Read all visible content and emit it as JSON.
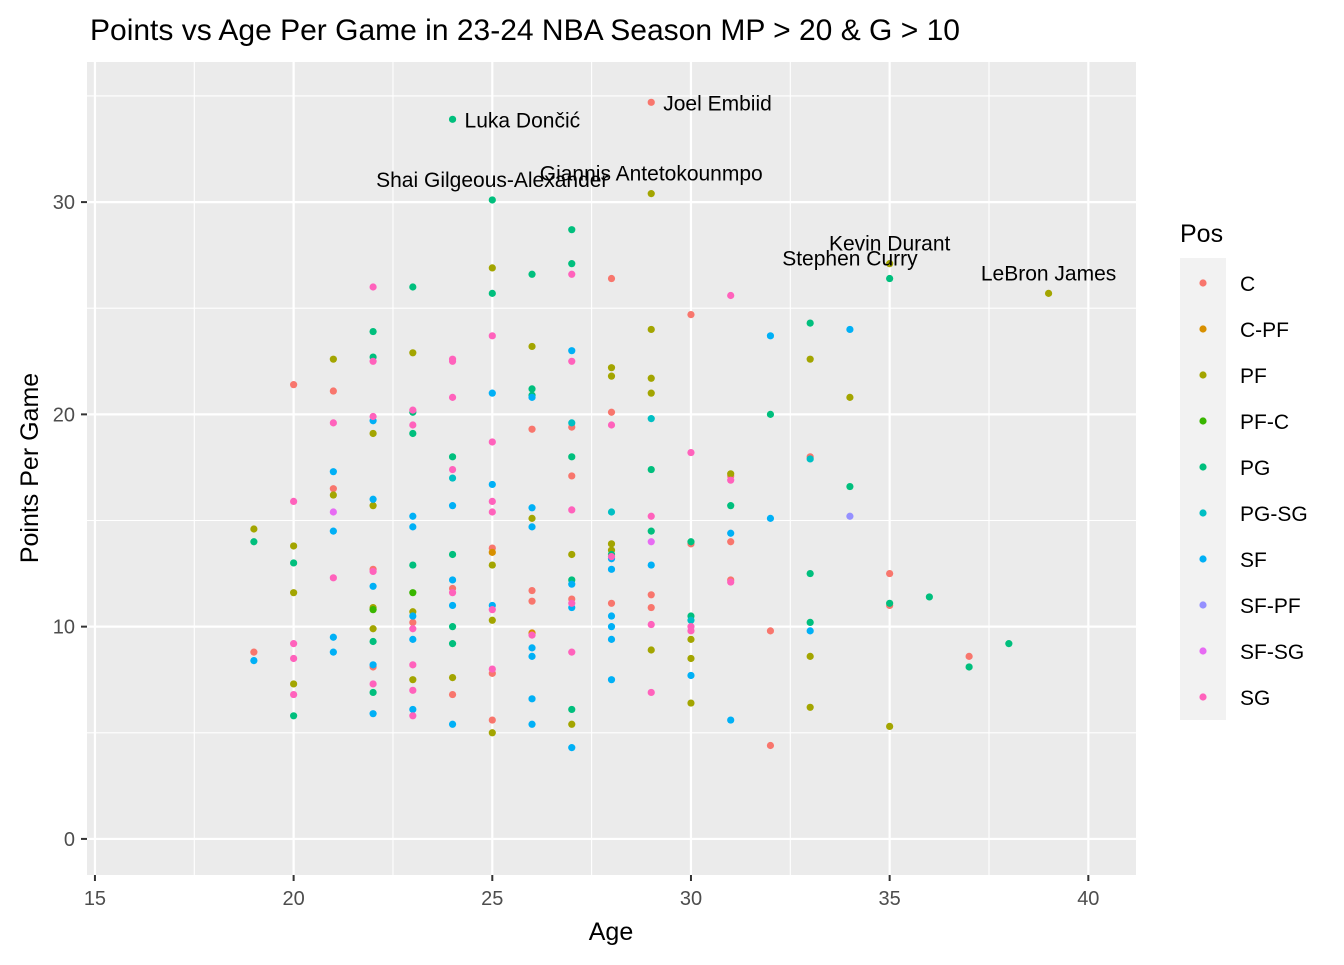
{
  "chart_data": {
    "type": "scatter",
    "title": "Points vs Age Per Game in 23-24 NBA Season MP > 20 & G > 10",
    "xlabel": "Age",
    "ylabel": "Points Per Game",
    "xlim": [
      14.8,
      41.2
    ],
    "ylim": [
      -1.7,
      36.6
    ],
    "x_ticks": [
      15,
      20,
      25,
      30,
      35,
      40
    ],
    "y_ticks": [
      0,
      10,
      20,
      30
    ],
    "grid": true,
    "legend": {
      "title": "Pos",
      "placement": "right",
      "entries": [
        {
          "name": "C",
          "color": "#F8766D"
        },
        {
          "name": "C-PF",
          "color": "#D89000"
        },
        {
          "name": "PF",
          "color": "#A3A500"
        },
        {
          "name": "PF-C",
          "color": "#39B600"
        },
        {
          "name": "PG",
          "color": "#00BF7D"
        },
        {
          "name": "PG-SG",
          "color": "#00BFC4"
        },
        {
          "name": "SF",
          "color": "#00B0F6"
        },
        {
          "name": "SF-PF",
          "color": "#9590FF"
        },
        {
          "name": "SF-SG",
          "color": "#E76BF3"
        },
        {
          "name": "SG",
          "color": "#FF62BC"
        }
      ]
    },
    "annotations": [
      {
        "text": "Joel Embiid",
        "x": 29,
        "y": 34.7,
        "anchor": "start"
      },
      {
        "text": "Luka Dončić",
        "x": 24,
        "y": 33.9,
        "anchor": "start"
      },
      {
        "text": "Giannis Antetokounmpo",
        "x": 29,
        "y": 30.4,
        "anchor": "middle"
      },
      {
        "text": "Shai Gilgeous-Alexander",
        "x": 25,
        "y": 30.1,
        "anchor": "middle"
      },
      {
        "text": "Kevin Durant",
        "x": 35,
        "y": 27.1,
        "anchor": "middle"
      },
      {
        "text": "Stephen Curry",
        "x": 34,
        "y": 26.4,
        "anchor": "middle"
      },
      {
        "text": "LeBron James",
        "x": 39,
        "y": 25.7,
        "anchor": "middle"
      }
    ],
    "series": [
      {
        "name": "C",
        "points": [
          [
            29,
            34.7
          ],
          [
            19,
            8.8
          ],
          [
            20,
            21.4
          ],
          [
            21,
            21.1
          ],
          [
            21,
            16.5
          ],
          [
            22,
            12.7
          ],
          [
            22,
            8.1
          ],
          [
            23,
            10.2
          ],
          [
            24,
            11.8
          ],
          [
            24,
            6.8
          ],
          [
            25,
            5.6
          ],
          [
            25,
            7.8
          ],
          [
            25,
            13.7
          ],
          [
            26,
            11.7
          ],
          [
            26,
            11.2
          ],
          [
            26,
            9.7
          ],
          [
            26,
            19.3
          ],
          [
            27,
            17.1
          ],
          [
            27,
            19.4
          ],
          [
            27,
            11.3
          ],
          [
            28,
            26.4
          ],
          [
            28,
            20.1
          ],
          [
            28,
            11.1
          ],
          [
            29,
            11.5
          ],
          [
            29,
            10.9
          ],
          [
            30,
            24.7
          ],
          [
            30,
            13.9
          ],
          [
            31,
            14.0
          ],
          [
            31,
            12.2
          ],
          [
            31,
            17.1
          ],
          [
            32,
            9.8
          ],
          [
            32,
            4.4
          ],
          [
            33,
            18.0
          ],
          [
            35,
            12.5
          ],
          [
            35,
            11.0
          ],
          [
            37,
            8.6
          ]
        ]
      },
      {
        "name": "C-PF",
        "points": [
          [
            25,
            13.5
          ],
          [
            26,
            9.7
          ]
        ]
      },
      {
        "name": "PF",
        "points": [
          [
            29,
            30.4
          ],
          [
            35,
            27.1
          ],
          [
            39,
            25.7
          ],
          [
            19,
            14.6
          ],
          [
            20,
            13.8
          ],
          [
            20,
            11.6
          ],
          [
            20,
            7.3
          ],
          [
            21,
            22.6
          ],
          [
            21,
            16.2
          ],
          [
            22,
            19.1
          ],
          [
            22,
            15.7
          ],
          [
            22,
            10.9
          ],
          [
            22,
            9.9
          ],
          [
            23,
            22.9
          ],
          [
            23,
            10.7
          ],
          [
            23,
            7.5
          ],
          [
            24,
            7.6
          ],
          [
            25,
            26.9
          ],
          [
            25,
            12.9
          ],
          [
            25,
            10.3
          ],
          [
            25,
            5.0
          ],
          [
            26,
            23.2
          ],
          [
            26,
            15.1
          ],
          [
            27,
            13.4
          ],
          [
            27,
            5.4
          ],
          [
            28,
            22.2
          ],
          [
            28,
            21.8
          ],
          [
            28,
            13.9
          ],
          [
            28,
            13.6
          ],
          [
            29,
            24.0
          ],
          [
            29,
            21.7
          ],
          [
            29,
            21.0
          ],
          [
            29,
            8.9
          ],
          [
            30,
            9.4
          ],
          [
            30,
            8.5
          ],
          [
            30,
            6.4
          ],
          [
            31,
            17.2
          ],
          [
            33,
            22.6
          ],
          [
            33,
            8.6
          ],
          [
            33,
            6.2
          ],
          [
            34,
            20.8
          ],
          [
            35,
            5.3
          ]
        ]
      },
      {
        "name": "PF-C",
        "points": [
          [
            22,
            10.8
          ],
          [
            23,
            11.6
          ]
        ]
      },
      {
        "name": "PG",
        "points": [
          [
            24,
            33.9
          ],
          [
            25,
            30.1
          ],
          [
            34,
            16.6
          ],
          [
            27,
            28.7
          ],
          [
            35,
            26.4
          ],
          [
            19,
            14.0
          ],
          [
            20,
            13.0
          ],
          [
            20,
            5.8
          ],
          [
            22,
            23.9
          ],
          [
            22,
            22.7
          ],
          [
            22,
            9.3
          ],
          [
            22,
            6.9
          ],
          [
            23,
            26.0
          ],
          [
            23,
            20.1
          ],
          [
            23,
            19.1
          ],
          [
            23,
            12.9
          ],
          [
            24,
            18.0
          ],
          [
            24,
            13.4
          ],
          [
            24,
            10.0
          ],
          [
            24,
            9.2
          ],
          [
            25,
            25.7
          ],
          [
            26,
            26.6
          ],
          [
            26,
            21.2
          ],
          [
            26,
            20.9
          ],
          [
            27,
            27.1
          ],
          [
            27,
            18.0
          ],
          [
            27,
            12.2
          ],
          [
            27,
            6.1
          ],
          [
            28,
            13.4
          ],
          [
            29,
            17.4
          ],
          [
            29,
            14.5
          ],
          [
            30,
            14.0
          ],
          [
            30,
            10.5
          ],
          [
            31,
            15.7
          ],
          [
            32,
            20.0
          ],
          [
            33,
            24.3
          ],
          [
            33,
            12.5
          ],
          [
            33,
            10.2
          ],
          [
            35,
            11.1
          ],
          [
            36,
            11.4
          ],
          [
            37,
            8.1
          ],
          [
            38,
            9.2
          ]
        ]
      },
      {
        "name": "PG-SG",
        "points": [
          [
            24,
            17.0
          ],
          [
            27,
            19.6
          ],
          [
            28,
            15.4
          ],
          [
            29,
            19.8
          ],
          [
            30,
            10.3
          ],
          [
            33,
            17.9
          ]
        ]
      },
      {
        "name": "SF",
        "points": [
          [
            19,
            8.4
          ],
          [
            21,
            17.3
          ],
          [
            21,
            14.5
          ],
          [
            21,
            9.5
          ],
          [
            21,
            8.8
          ],
          [
            22,
            19.7
          ],
          [
            22,
            16.0
          ],
          [
            22,
            11.9
          ],
          [
            22,
            8.2
          ],
          [
            22,
            5.9
          ],
          [
            23,
            15.2
          ],
          [
            23,
            14.7
          ],
          [
            23,
            10.5
          ],
          [
            23,
            9.4
          ],
          [
            23,
            6.1
          ],
          [
            24,
            15.7
          ],
          [
            24,
            12.2
          ],
          [
            24,
            11.0
          ],
          [
            24,
            5.4
          ],
          [
            25,
            21.0
          ],
          [
            25,
            16.7
          ],
          [
            25,
            11.0
          ],
          [
            26,
            20.8
          ],
          [
            26,
            15.6
          ],
          [
            26,
            14.7
          ],
          [
            26,
            9.0
          ],
          [
            26,
            8.6
          ],
          [
            26,
            6.6
          ],
          [
            26,
            5.4
          ],
          [
            27,
            23.0
          ],
          [
            27,
            12.0
          ],
          [
            27,
            10.9
          ],
          [
            27,
            4.3
          ],
          [
            28,
            13.2
          ],
          [
            28,
            12.7
          ],
          [
            28,
            10.5
          ],
          [
            28,
            10.0
          ],
          [
            28,
            9.4
          ],
          [
            28,
            7.5
          ],
          [
            29,
            12.9
          ],
          [
            30,
            7.7
          ],
          [
            31,
            14.4
          ],
          [
            31,
            5.6
          ],
          [
            32,
            23.7
          ],
          [
            32,
            15.1
          ],
          [
            33,
            9.8
          ],
          [
            34,
            24.0
          ]
        ]
      },
      {
        "name": "SF-PF",
        "points": [
          [
            34,
            15.2
          ]
        ]
      },
      {
        "name": "SF-SG",
        "points": [
          [
            21,
            15.4
          ],
          [
            29,
            14.0
          ]
        ]
      },
      {
        "name": "SG",
        "points": [
          [
            20,
            15.9
          ],
          [
            20,
            9.2
          ],
          [
            20,
            8.5
          ],
          [
            20,
            6.8
          ],
          [
            21,
            19.6
          ],
          [
            21,
            12.3
          ],
          [
            22,
            26.0
          ],
          [
            22,
            22.5
          ],
          [
            22,
            19.9
          ],
          [
            22,
            12.6
          ],
          [
            22,
            7.3
          ],
          [
            23,
            20.2
          ],
          [
            23,
            19.5
          ],
          [
            23,
            9.9
          ],
          [
            23,
            8.2
          ],
          [
            23,
            7.0
          ],
          [
            23,
            5.8
          ],
          [
            24,
            22.6
          ],
          [
            24,
            22.5
          ],
          [
            24,
            20.8
          ],
          [
            24,
            17.4
          ],
          [
            24,
            11.6
          ],
          [
            25,
            23.7
          ],
          [
            25,
            18.7
          ],
          [
            25,
            15.9
          ],
          [
            25,
            15.4
          ],
          [
            25,
            10.8
          ],
          [
            25,
            8.0
          ],
          [
            26,
            9.6
          ],
          [
            27,
            26.6
          ],
          [
            27,
            22.5
          ],
          [
            27,
            15.5
          ],
          [
            27,
            11.1
          ],
          [
            27,
            8.8
          ],
          [
            28,
            19.5
          ],
          [
            28,
            13.3
          ],
          [
            29,
            15.2
          ],
          [
            29,
            10.1
          ],
          [
            29,
            6.9
          ],
          [
            30,
            18.2
          ],
          [
            30,
            10.0
          ],
          [
            30,
            9.8
          ],
          [
            31,
            25.6
          ],
          [
            31,
            16.9
          ],
          [
            31,
            12.1
          ]
        ]
      }
    ]
  }
}
